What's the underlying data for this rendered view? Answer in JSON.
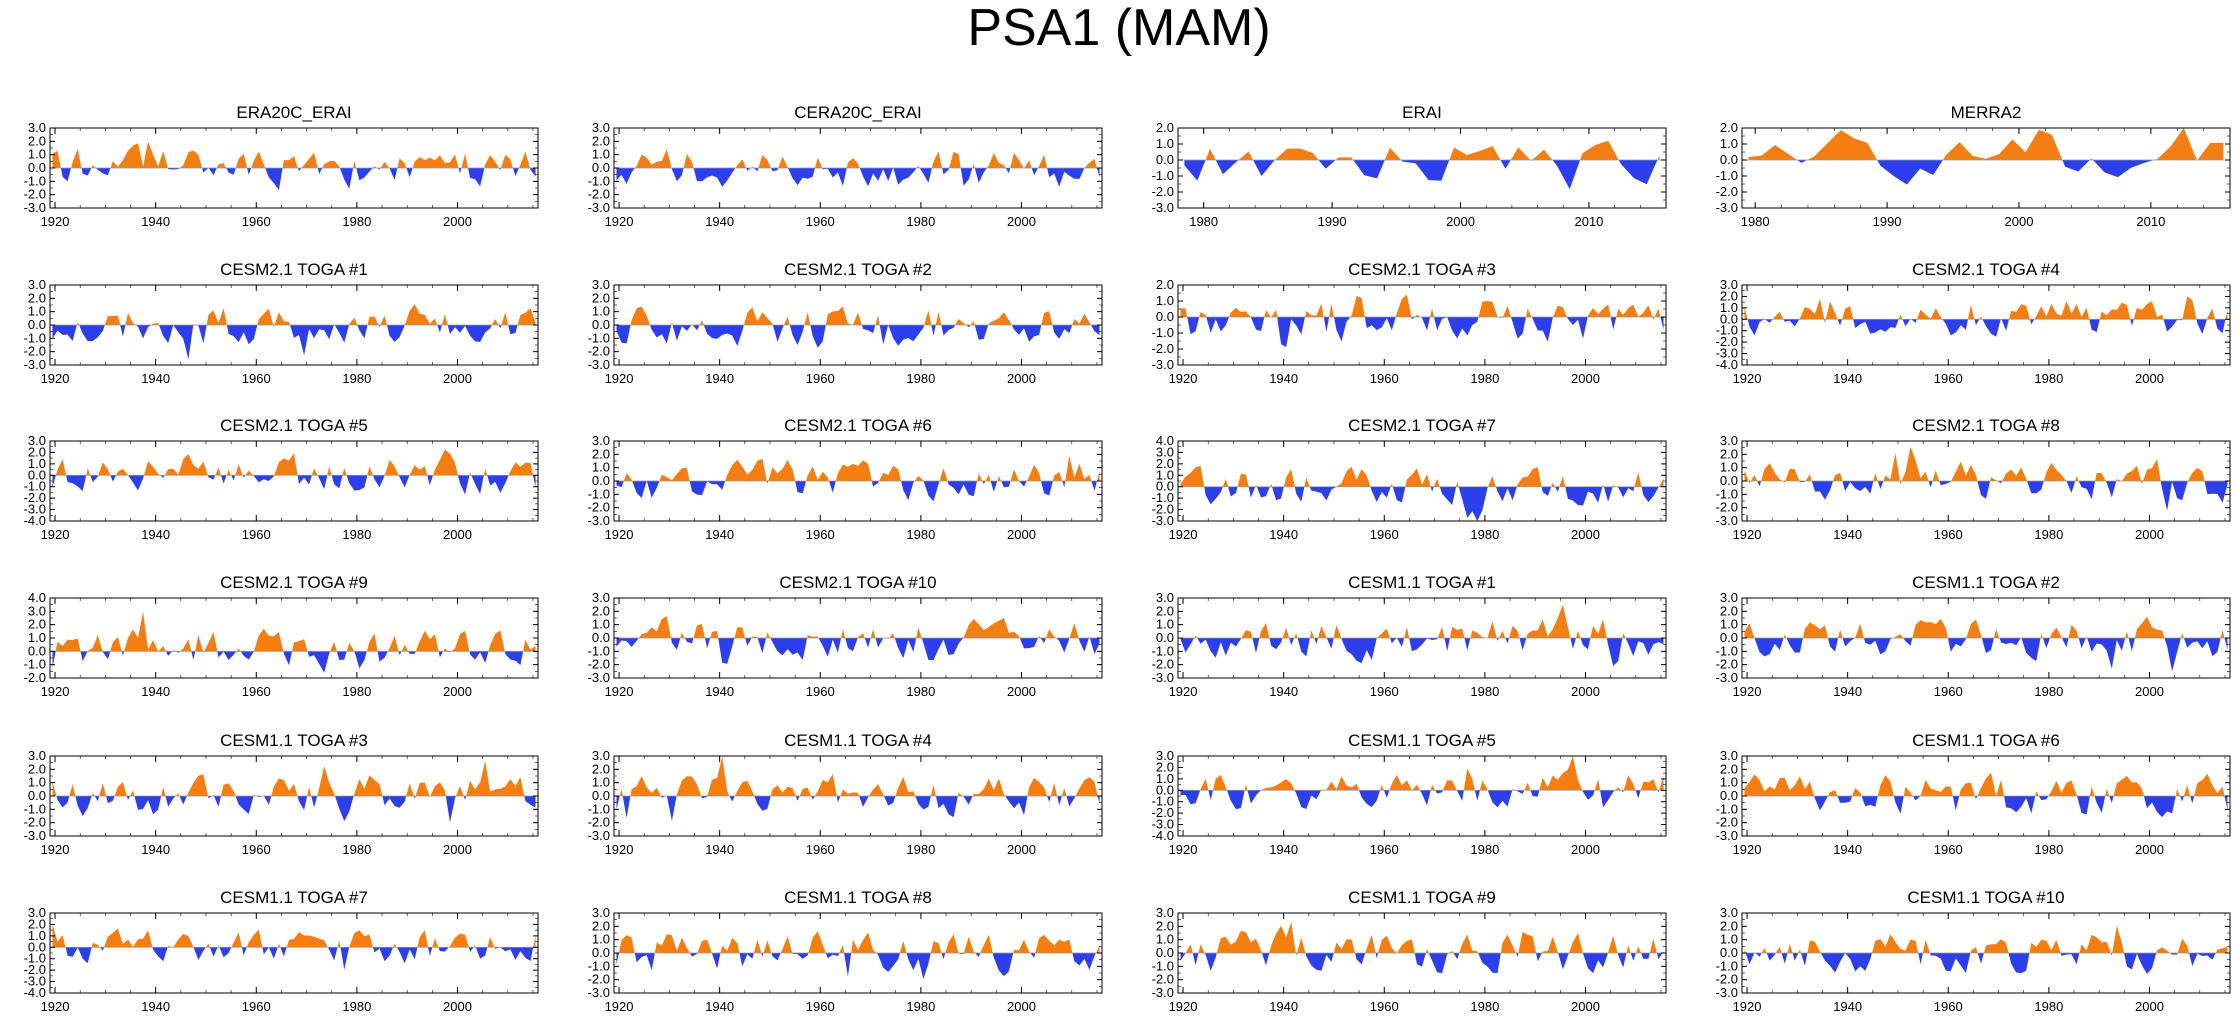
{
  "page": {
    "title": "PSA1 (MAM)"
  },
  "colors": {
    "positive": "#f57e12",
    "negative": "#2c3fea",
    "axis": "#000000"
  },
  "chart_data": [
    {
      "type": "area",
      "title": "ERA20C_ERAI",
      "xlim": [
        1919,
        2016
      ],
      "ylim": [
        -3,
        3
      ],
      "ystep": 1,
      "yticks": [
        "3.0",
        "2.0",
        "1.0",
        "0.0",
        "-1.0",
        "-2.0",
        "-3.0"
      ],
      "xticks": [
        1920,
        1940,
        1960,
        1980,
        2000
      ],
      "seed": 11,
      "amp": 1.3
    },
    {
      "type": "area",
      "title": "CERA20C_ERAI",
      "xlim": [
        1919,
        2016
      ],
      "ylim": [
        -3,
        3
      ],
      "ystep": 1,
      "yticks": [
        "3.0",
        "2.0",
        "1.0",
        "0.0",
        "-1.0",
        "-2.0",
        "-3.0"
      ],
      "xticks": [
        1920,
        1940,
        1960,
        1980,
        2000
      ],
      "seed": 12,
      "amp": 1.3
    },
    {
      "type": "area",
      "title": "ERAI",
      "xlim": [
        1978,
        2016
      ],
      "ylim": [
        -3,
        2
      ],
      "ystep": 1,
      "yticks": [
        "2.0",
        "1.0",
        "0.0",
        "-1.0",
        "-2.0",
        "-3.0"
      ],
      "xticks": [
        1980,
        1990,
        2000,
        2010
      ],
      "seed": 13,
      "amp": 1.2
    },
    {
      "type": "area",
      "title": "MERRA2",
      "xlim": [
        1979,
        2016
      ],
      "ylim": [
        -3,
        2
      ],
      "ystep": 1,
      "yticks": [
        "2.0",
        "1.0",
        "0.0",
        "-1.0",
        "-2.0",
        "-3.0"
      ],
      "xticks": [
        1980,
        1990,
        2000,
        2010
      ],
      "seed": 14,
      "amp": 1.2
    },
    {
      "type": "area",
      "title": "CESM2.1 TOGA #1",
      "xlim": [
        1919,
        2016
      ],
      "ylim": [
        -3,
        3
      ],
      "ystep": 1,
      "yticks": [
        "3.0",
        "2.0",
        "1.0",
        "0.0",
        "-1.0",
        "-2.0",
        "-3.0"
      ],
      "xticks": [
        1920,
        1940,
        1960,
        1980,
        2000
      ],
      "seed": 21,
      "amp": 1.3
    },
    {
      "type": "area",
      "title": "CESM2.1 TOGA #2",
      "xlim": [
        1919,
        2016
      ],
      "ylim": [
        -3,
        3
      ],
      "ystep": 1,
      "yticks": [
        "3.0",
        "2.0",
        "1.0",
        "0.0",
        "-1.0",
        "-2.0",
        "-3.0"
      ],
      "xticks": [
        1920,
        1940,
        1960,
        1980,
        2000
      ],
      "seed": 22,
      "amp": 1.3
    },
    {
      "type": "area",
      "title": "CESM2.1 TOGA #3",
      "xlim": [
        1919,
        2016
      ],
      "ylim": [
        -3,
        2
      ],
      "ystep": 1,
      "yticks": [
        "2.0",
        "1.0",
        "0.0",
        "-1.0",
        "-2.0",
        "-3.0"
      ],
      "xticks": [
        1920,
        1940,
        1960,
        1980,
        2000
      ],
      "seed": 23,
      "amp": 1.3
    },
    {
      "type": "area",
      "title": "CESM2.1 TOGA #4",
      "xlim": [
        1919,
        2016
      ],
      "ylim": [
        -4,
        3
      ],
      "ystep": 1,
      "yticks": [
        "3.0",
        "2.0",
        "1.0",
        "0.0",
        "-1.0",
        "-2.0",
        "-3.0",
        "-4.0"
      ],
      "xticks": [
        1920,
        1940,
        1960,
        1980,
        2000
      ],
      "seed": 24,
      "amp": 1.3
    },
    {
      "type": "area",
      "title": "CESM2.1 TOGA #5",
      "xlim": [
        1919,
        2016
      ],
      "ylim": [
        -4,
        3
      ],
      "ystep": 1,
      "yticks": [
        "3.0",
        "2.0",
        "1.0",
        "0.0",
        "-1.0",
        "-2.0",
        "-3.0",
        "-4.0"
      ],
      "xticks": [
        1920,
        1940,
        1960,
        1980,
        2000
      ],
      "seed": 25,
      "amp": 1.5
    },
    {
      "type": "area",
      "title": "CESM2.1 TOGA #6",
      "xlim": [
        1919,
        2016
      ],
      "ylim": [
        -3,
        3
      ],
      "ystep": 1,
      "yticks": [
        "3.0",
        "2.0",
        "1.0",
        "0.0",
        "-1.0",
        "-2.0",
        "-3.0"
      ],
      "xticks": [
        1920,
        1940,
        1960,
        1980,
        2000
      ],
      "seed": 26,
      "amp": 1.3
    },
    {
      "type": "area",
      "title": "CESM2.1 TOGA #7",
      "xlim": [
        1919,
        2016
      ],
      "ylim": [
        -3,
        4
      ],
      "ystep": 1,
      "yticks": [
        "4.0",
        "3.0",
        "2.0",
        "1.0",
        "0.0",
        "-1.0",
        "-2.0",
        "-3.0"
      ],
      "xticks": [
        1920,
        1940,
        1960,
        1980,
        2000
      ],
      "seed": 27,
      "amp": 1.4
    },
    {
      "type": "area",
      "title": "CESM2.1 TOGA #8",
      "xlim": [
        1919,
        2016
      ],
      "ylim": [
        -3,
        3
      ],
      "ystep": 1,
      "yticks": [
        "3.0",
        "2.0",
        "1.0",
        "0.0",
        "-1.0",
        "-2.0",
        "-3.0"
      ],
      "xticks": [
        1920,
        1940,
        1960,
        1980,
        2000
      ],
      "seed": 28,
      "amp": 1.3
    },
    {
      "type": "area",
      "title": "CESM2.1 TOGA #9",
      "xlim": [
        1919,
        2016
      ],
      "ylim": [
        -2,
        4
      ],
      "ystep": 1,
      "yticks": [
        "4.0",
        "3.0",
        "2.0",
        "1.0",
        "0.0",
        "-1.0",
        "-2.0"
      ],
      "xticks": [
        1920,
        1940,
        1960,
        1980,
        2000
      ],
      "seed": 29,
      "amp": 1.3
    },
    {
      "type": "area",
      "title": "CESM2.1 TOGA #10",
      "xlim": [
        1919,
        2016
      ],
      "ylim": [
        -3,
        3
      ],
      "ystep": 1,
      "yticks": [
        "3.0",
        "2.0",
        "1.0",
        "0.0",
        "-1.0",
        "-2.0",
        "-3.0"
      ],
      "xticks": [
        1920,
        1940,
        1960,
        1980,
        2000
      ],
      "seed": 30,
      "amp": 1.3
    },
    {
      "type": "area",
      "title": "CESM1.1 TOGA #1",
      "xlim": [
        1919,
        2016
      ],
      "ylim": [
        -3,
        3
      ],
      "ystep": 1,
      "yticks": [
        "3.0",
        "2.0",
        "1.0",
        "0.0",
        "-1.0",
        "-2.0",
        "-3.0"
      ],
      "xticks": [
        1920,
        1940,
        1960,
        1980,
        2000
      ],
      "seed": 31,
      "amp": 1.3
    },
    {
      "type": "area",
      "title": "CESM1.1 TOGA #2",
      "xlim": [
        1919,
        2016
      ],
      "ylim": [
        -3,
        3
      ],
      "ystep": 1,
      "yticks": [
        "3.0",
        "2.0",
        "1.0",
        "0.0",
        "-1.0",
        "-2.0",
        "-3.0"
      ],
      "xticks": [
        1920,
        1940,
        1960,
        1980,
        2000
      ],
      "seed": 32,
      "amp": 1.3
    },
    {
      "type": "area",
      "title": "CESM1.1 TOGA #3",
      "xlim": [
        1919,
        2016
      ],
      "ylim": [
        -3,
        3
      ],
      "ystep": 1,
      "yticks": [
        "3.0",
        "2.0",
        "1.0",
        "0.0",
        "-1.0",
        "-2.0",
        "-3.0"
      ],
      "xticks": [
        1920,
        1940,
        1960,
        1980,
        2000
      ],
      "seed": 33,
      "amp": 1.3
    },
    {
      "type": "area",
      "title": "CESM1.1 TOGA #4",
      "xlim": [
        1919,
        2016
      ],
      "ylim": [
        -3,
        3
      ],
      "ystep": 1,
      "yticks": [
        "3.0",
        "2.0",
        "1.0",
        "0.0",
        "-1.0",
        "-2.0",
        "-3.0"
      ],
      "xticks": [
        1920,
        1940,
        1960,
        1980,
        2000
      ],
      "seed": 34,
      "amp": 1.3
    },
    {
      "type": "area",
      "title": "CESM1.1 TOGA #5",
      "xlim": [
        1919,
        2016
      ],
      "ylim": [
        -4,
        3
      ],
      "ystep": 1,
      "yticks": [
        "3.0",
        "2.0",
        "1.0",
        "0.0",
        "-1.0",
        "-2.0",
        "-3.0",
        "-4.0"
      ],
      "xticks": [
        1920,
        1940,
        1960,
        1980,
        2000
      ],
      "seed": 35,
      "amp": 1.4
    },
    {
      "type": "area",
      "title": "CESM1.1 TOGA #6",
      "xlim": [
        1919,
        2016
      ],
      "ylim": [
        -3,
        3
      ],
      "ystep": 1,
      "yticks": [
        "3.0",
        "2.0",
        "1.0",
        "0.0",
        "-1.0",
        "-2.0",
        "-3.0"
      ],
      "xticks": [
        1920,
        1940,
        1960,
        1980,
        2000
      ],
      "seed": 36,
      "amp": 1.3
    },
    {
      "type": "area",
      "title": "CESM1.1 TOGA #7",
      "xlim": [
        1919,
        2016
      ],
      "ylim": [
        -4,
        3
      ],
      "ystep": 1,
      "yticks": [
        "3.0",
        "2.0",
        "1.0",
        "0.0",
        "-1.0",
        "-2.0",
        "-3.0",
        "-4.0"
      ],
      "xticks": [
        1920,
        1940,
        1960,
        1980,
        2000
      ],
      "seed": 37,
      "amp": 1.3
    },
    {
      "type": "area",
      "title": "CESM1.1 TOGA #8",
      "xlim": [
        1919,
        2016
      ],
      "ylim": [
        -3,
        3
      ],
      "ystep": 1,
      "yticks": [
        "3.0",
        "2.0",
        "1.0",
        "0.0",
        "-1.0",
        "-2.0",
        "-3.0"
      ],
      "xticks": [
        1920,
        1940,
        1960,
        1980,
        2000
      ],
      "seed": 38,
      "amp": 1.3
    },
    {
      "type": "area",
      "title": "CESM1.1 TOGA #9",
      "xlim": [
        1919,
        2016
      ],
      "ylim": [
        -3,
        3
      ],
      "ystep": 1,
      "yticks": [
        "3.0",
        "2.0",
        "1.0",
        "0.0",
        "-1.0",
        "-2.0",
        "-3.0"
      ],
      "xticks": [
        1920,
        1940,
        1960,
        1980,
        2000
      ],
      "seed": 39,
      "amp": 1.3
    },
    {
      "type": "area",
      "title": "CESM1.1 TOGA #10",
      "xlim": [
        1919,
        2016
      ],
      "ylim": [
        -3,
        3
      ],
      "ystep": 1,
      "yticks": [
        "3.0",
        "2.0",
        "1.0",
        "0.0",
        "-1.0",
        "-2.0",
        "-3.0"
      ],
      "xticks": [
        1920,
        1940,
        1960,
        1980,
        2000
      ],
      "seed": 40,
      "amp": 1.3
    }
  ]
}
